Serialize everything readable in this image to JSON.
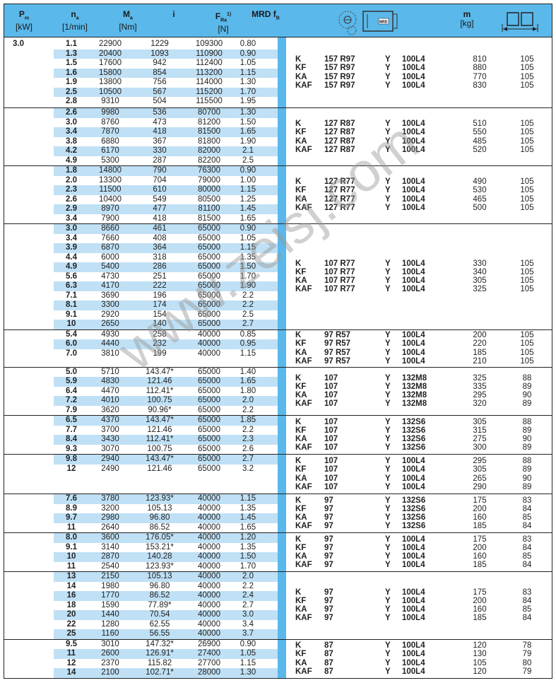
{
  "header": {
    "pm": "P",
    "pm_sub": "m",
    "pm_unit": "[kW]",
    "na": "n",
    "na_sub": "a",
    "na_unit": "[1/min]",
    "ma": "M",
    "ma_sub": "a",
    "ma_unit": "[Nm]",
    "i": "i",
    "fra": "F",
    "fra_sub": "Ra",
    "fra_sup": "1)",
    "fra_unit": "[N]",
    "fb": "MRD f",
    "fb_sub": "B",
    "gear_icon_label": "MRD",
    "m": "m",
    "m_unit": "[kg]"
  },
  "power": "3.0",
  "watermark": "www.zeisj.com",
  "colors": {
    "header": "#5ab8ea",
    "stripe": "#bfe0f5",
    "bar": "#5ab8ea"
  },
  "groups": [
    {
      "rows": [
        [
          "1.1",
          "22900",
          "1229",
          "109300",
          "0.80"
        ],
        [
          "1.3",
          "20400",
          "1093",
          "110900",
          "0.90"
        ],
        [
          "1.5",
          "17600",
          "942",
          "112400",
          "1.05"
        ],
        [
          "1.6",
          "15800",
          "854",
          "113200",
          "1.15"
        ],
        [
          "1.9",
          "13800",
          "756",
          "114000",
          "1.30"
        ],
        [
          "2.5",
          "10500",
          "567",
          "115200",
          "1.70"
        ],
        [
          "2.8",
          "9310",
          "504",
          "115500",
          "1.95"
        ]
      ],
      "types": [
        [
          "K",
          "157 R97",
          "Y",
          "100L4",
          "810",
          "105"
        ],
        [
          "KF",
          "157 R97",
          "Y",
          "100L4",
          "880",
          "105"
        ],
        [
          "KA",
          "157 R97",
          "Y",
          "100L4",
          "770",
          "105"
        ],
        [
          "KAF",
          "157 R97",
          "Y",
          "100L4",
          "830",
          "105"
        ]
      ]
    },
    {
      "rows": [
        [
          "2.6",
          "9980",
          "536",
          "80700",
          "1.30"
        ],
        [
          "3.0",
          "8760",
          "473",
          "81200",
          "1.50"
        ],
        [
          "3.4",
          "7870",
          "418",
          "81500",
          "1.65"
        ],
        [
          "3.8",
          "6880",
          "367",
          "81800",
          "1.90"
        ],
        [
          "4.2",
          "6170",
          "330",
          "82000",
          "2.1"
        ],
        [
          "4.9",
          "5300",
          "287",
          "82200",
          "2.5"
        ]
      ],
      "types": [
        [
          "K",
          "127 R87",
          "Y",
          "100L4",
          "510",
          "105"
        ],
        [
          "KF",
          "127 R87",
          "Y",
          "100L4",
          "550",
          "105"
        ],
        [
          "KA",
          "127 R87",
          "Y",
          "100L4",
          "485",
          "105"
        ],
        [
          "KAF",
          "127 R87",
          "Y",
          "100L4",
          "520",
          "105"
        ]
      ]
    },
    {
      "rows": [
        [
          "1.8",
          "14800",
          "790",
          "76300",
          "0.90"
        ],
        [
          "2.0",
          "13300",
          "704",
          "79000",
          "1.00"
        ],
        [
          "2.3",
          "11500",
          "610",
          "80000",
          "1.15"
        ],
        [
          "2.6",
          "10400",
          "549",
          "80500",
          "1.25"
        ],
        [
          "2.9",
          "8970",
          "477",
          "81100",
          "1.45"
        ],
        [
          "3.4",
          "7900",
          "418",
          "81500",
          "1.65"
        ]
      ],
      "types": [
        [
          "K",
          "127 R77",
          "Y",
          "100L4",
          "490",
          "105"
        ],
        [
          "KF",
          "127 R77",
          "Y",
          "100L4",
          "530",
          "105"
        ],
        [
          "KA",
          "127 R77",
          "Y",
          "100L4",
          "465",
          "105"
        ],
        [
          "KAF",
          "127 R77",
          "Y",
          "100L4",
          "500",
          "105"
        ]
      ]
    },
    {
      "rows": [
        [
          "3.0",
          "8660",
          "461",
          "65000",
          "0.90"
        ],
        [
          "3.4",
          "7660",
          "408",
          "65000",
          "1.05"
        ],
        [
          "3.9",
          "6870",
          "364",
          "65000",
          "1.15"
        ],
        [
          "4.4",
          "6000",
          "318",
          "65000",
          "1.35"
        ],
        [
          "4.9",
          "5400",
          "286",
          "65000",
          "1.50"
        ],
        [
          "5.6",
          "4730",
          "251",
          "65000",
          "1.70"
        ],
        [
          "6.3",
          "4170",
          "222",
          "65000",
          "1.90"
        ],
        [
          "7.1",
          "3690",
          "196",
          "65000",
          "2.2"
        ],
        [
          "8.1",
          "3300",
          "174",
          "65000",
          "2.2"
        ],
        [
          "9.1",
          "2920",
          "154",
          "65000",
          "2.5"
        ],
        [
          "10",
          "2650",
          "140",
          "65000",
          "2.7"
        ]
      ],
      "types": [
        [
          "K",
          "107 R77",
          "Y",
          "100L4",
          "330",
          "105"
        ],
        [
          "KF",
          "107 R77",
          "Y",
          "100L4",
          "340",
          "105"
        ],
        [
          "KA",
          "107 R77",
          "Y",
          "100L4",
          "305",
          "105"
        ],
        [
          "KAF",
          "107 R77",
          "Y",
          "100L4",
          "325",
          "105"
        ]
      ]
    },
    {
      "rows": [
        [
          "5.4",
          "4930",
          "258",
          "40000",
          "0.85"
        ],
        [
          "6.0",
          "4440",
          "232",
          "40000",
          "0.95"
        ],
        [
          "7.0",
          "3810",
          "199",
          "40000",
          "1.15"
        ]
      ],
      "types": [
        [
          "K",
          "97 R57",
          "Y",
          "100L4",
          "200",
          "105"
        ],
        [
          "KF",
          "97 R57",
          "Y",
          "100L4",
          "220",
          "105"
        ],
        [
          "KA",
          "97 R57",
          "Y",
          "100L4",
          "185",
          "105"
        ],
        [
          "KAF",
          "97 R57",
          "Y",
          "100L4",
          "210",
          "105"
        ]
      ]
    },
    {
      "rows": [
        [
          "5.0",
          "5710",
          "143.47*",
          "65000",
          "1.40"
        ],
        [
          "5.9",
          "4830",
          "121.46",
          "65000",
          "1.65"
        ],
        [
          "6.4",
          "4470",
          "112.41*",
          "65000",
          "1.80"
        ],
        [
          "7.2",
          "4010",
          "100.75",
          "65000",
          "2.0"
        ],
        [
          "7.9",
          "3620",
          "90.96*",
          "65000",
          "2.2"
        ]
      ],
      "types": [
        [
          "K",
          "107",
          "Y",
          "132M8",
          "325",
          "88"
        ],
        [
          "KF",
          "107",
          "Y",
          "132M8",
          "335",
          "89"
        ],
        [
          "KA",
          "107",
          "Y",
          "132M8",
          "295",
          "90"
        ],
        [
          "KAF",
          "107",
          "Y",
          "132M8",
          "320",
          "89"
        ]
      ]
    },
    {
      "rows": [
        [
          "6.5",
          "4370",
          "143.47*",
          "65000",
          "1.85"
        ],
        [
          "7.7",
          "3700",
          "121.46",
          "65000",
          "2.2"
        ],
        [
          "8.4",
          "3430",
          "112.41*",
          "65000",
          "2.3"
        ],
        [
          "9.3",
          "3070",
          "100.75",
          "65000",
          "2.6"
        ]
      ],
      "types": [
        [
          "K",
          "107",
          "Y",
          "132S6",
          "305",
          "88"
        ],
        [
          "KF",
          "107",
          "Y",
          "132S6",
          "315",
          "89"
        ],
        [
          "KA",
          "107",
          "Y",
          "132S6",
          "275",
          "90"
        ],
        [
          "KAF",
          "107",
          "Y",
          "132S6",
          "300",
          "89"
        ]
      ]
    },
    {
      "rows": [
        [
          "9.8",
          "2940",
          "143.47*",
          "65000",
          "2.7"
        ],
        [
          "12",
          "2490",
          "121.46",
          "65000",
          "3.2"
        ]
      ],
      "types": [
        [
          "K",
          "107",
          "Y",
          "100L4",
          "295",
          "88"
        ],
        [
          "KF",
          "107",
          "Y",
          "100L4",
          "305",
          "89"
        ],
        [
          "KA",
          "107",
          "Y",
          "100L4",
          "265",
          "90"
        ],
        [
          "KAF",
          "107",
          "Y",
          "100L4",
          "290",
          "89"
        ]
      ]
    },
    {
      "rows": [
        [
          "7.6",
          "3780",
          "123.93*",
          "40000",
          "1.15"
        ],
        [
          "8.9",
          "3200",
          "105.13",
          "40000",
          "1.35"
        ],
        [
          "9.7",
          "2980",
          "96.80",
          "40000",
          "1.45"
        ],
        [
          "11",
          "2640",
          "86.52",
          "40000",
          "1.65"
        ]
      ],
      "types": [
        [
          "K",
          "97",
          "Y",
          "132S6",
          "175",
          "83"
        ],
        [
          "KF",
          "97",
          "Y",
          "132S6",
          "200",
          "84"
        ],
        [
          "KA",
          "97",
          "Y",
          "132S6",
          "160",
          "85"
        ],
        [
          "KAF",
          "97",
          "Y",
          "132S6",
          "185",
          "84"
        ]
      ]
    },
    {
      "rows": [
        [
          "8.0",
          "3600",
          "176.05*",
          "40000",
          "1.20"
        ],
        [
          "9.1",
          "3140",
          "153.21*",
          "40000",
          "1.35"
        ],
        [
          "10",
          "2870",
          "140.28",
          "40000",
          "1.50"
        ],
        [
          "11",
          "2540",
          "123.93*",
          "40000",
          "1.70"
        ]
      ],
      "types": [
        [
          "K",
          "97",
          "Y",
          "100L4",
          "175",
          "83"
        ],
        [
          "KF",
          "97",
          "Y",
          "100L4",
          "200",
          "84"
        ],
        [
          "KA",
          "97",
          "Y",
          "100L4",
          "160",
          "85"
        ],
        [
          "KAF",
          "97",
          "Y",
          "100L4",
          "185",
          "84"
        ]
      ]
    },
    {
      "rows": [
        [
          "13",
          "2150",
          "105.13",
          "40000",
          "2.0"
        ],
        [
          "14",
          "1980",
          "96.80",
          "40000",
          "2.2"
        ],
        [
          "16",
          "1770",
          "86.52",
          "40000",
          "2.4"
        ],
        [
          "18",
          "1590",
          "77.89*",
          "40000",
          "2.7"
        ],
        [
          "20",
          "1440",
          "70.54",
          "40000",
          "3.0"
        ],
        [
          "22",
          "1280",
          "62.55",
          "40000",
          "3.4"
        ],
        [
          "25",
          "1160",
          "56.55",
          "40000",
          "3.7"
        ]
      ],
      "types": [
        [
          "K",
          "97",
          "Y",
          "100L4",
          "175",
          "83"
        ],
        [
          "KF",
          "97",
          "Y",
          "100L4",
          "200",
          "84"
        ],
        [
          "KA",
          "97",
          "Y",
          "100L4",
          "160",
          "85"
        ],
        [
          "KAF",
          "97",
          "Y",
          "100L4",
          "185",
          "84"
        ]
      ]
    },
    {
      "rows": [
        [
          "9.5",
          "3010",
          "147.32*",
          "26900",
          "0.90"
        ],
        [
          "11",
          "2600",
          "126.91*",
          "27400",
          "1.05"
        ],
        [
          "12",
          "2370",
          "115.82",
          "27700",
          "1.15"
        ],
        [
          "14",
          "2100",
          "102.71*",
          "28000",
          "1.30"
        ]
      ],
      "types": [
        [
          "K",
          "87",
          "Y",
          "100L4",
          "120",
          "78"
        ],
        [
          "KF",
          "87",
          "Y",
          "100L4",
          "130",
          "79"
        ],
        [
          "KA",
          "87",
          "Y",
          "100L4",
          "105",
          "80"
        ],
        [
          "KAF",
          "87",
          "Y",
          "100L4",
          "120",
          "79"
        ]
      ]
    }
  ]
}
